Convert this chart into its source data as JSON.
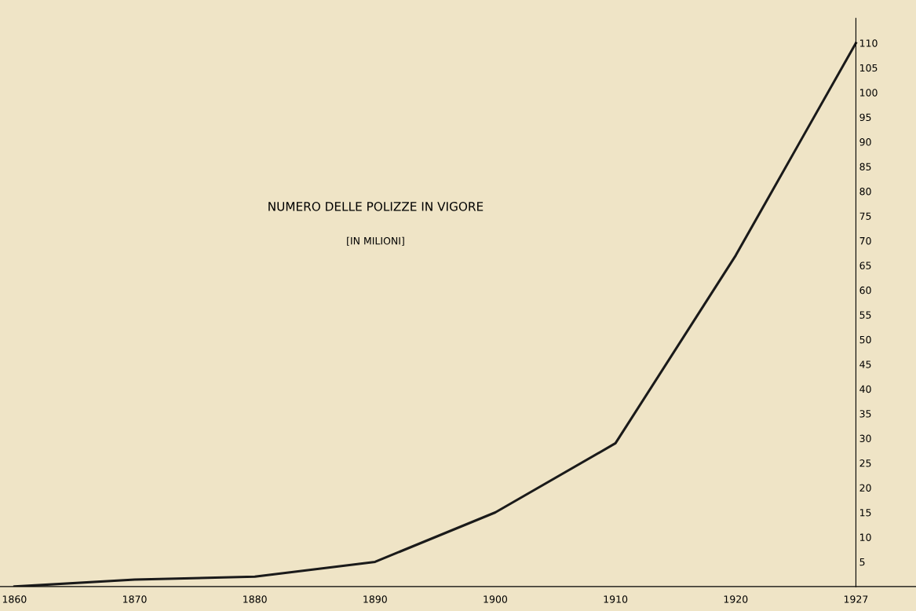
{
  "chart_data": {
    "type": "line",
    "title": "NUMERO DELLE POLIZZE IN VIGORE",
    "subtitle": "[IN MILIONI]",
    "categories": [
      "1860",
      "1870",
      "1880",
      "1890",
      "1900",
      "1910",
      "1920",
      "1927"
    ],
    "values": [
      0,
      1.4,
      2,
      5,
      15,
      29,
      67,
      110
    ],
    "color": "#1a1a1a",
    "ylim": [
      0,
      115
    ],
    "yticks": [
      5,
      10,
      15,
      20,
      25,
      30,
      35,
      40,
      45,
      50,
      55,
      60,
      65,
      70,
      75,
      80,
      85,
      90,
      95,
      100,
      105,
      110
    ],
    "grid": false,
    "legend": false,
    "marker": "none",
    "line_style": "solid"
  }
}
